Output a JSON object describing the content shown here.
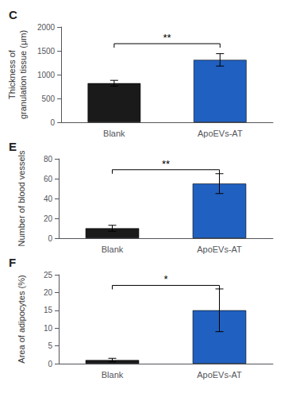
{
  "chart_data": [
    {
      "type": "bar",
      "title": "C",
      "ylabel": "Thickness of\ngranulation tissue (μm)",
      "categories": [
        "Blank",
        "ApoEVs-AT"
      ],
      "values": [
        820,
        1310
      ],
      "errors": [
        60,
        130
      ],
      "colors": [
        "#1a1a1a",
        "#2060c0"
      ],
      "ylim": [
        0,
        2000
      ],
      "yticks": [
        0,
        500,
        1000,
        1500,
        2000
      ],
      "grid": false,
      "annotations": [
        {
          "text": "**",
          "y": 1650
        }
      ]
    },
    {
      "type": "bar",
      "title": "E",
      "ylabel": "Number of blood vessels",
      "categories": [
        "Blank",
        "ApoEVs-AT"
      ],
      "values": [
        10,
        55
      ],
      "errors": [
        3,
        10
      ],
      "colors": [
        "#1a1a1a",
        "#2060c0"
      ],
      "ylim": [
        0,
        80
      ],
      "yticks": [
        0,
        20,
        40,
        60,
        80
      ],
      "grid": false,
      "annotations": [
        {
          "text": "**",
          "y": 69
        }
      ]
    },
    {
      "type": "bar",
      "title": "F",
      "ylabel": "Area of adipocytes (%)",
      "categories": [
        "Blank",
        "ApoEVs-AT"
      ],
      "values": [
        1,
        15
      ],
      "errors": [
        0.5,
        6
      ],
      "colors": [
        "#1a1a1a",
        "#2060c0"
      ],
      "ylim": [
        0,
        25
      ],
      "yticks": [
        0,
        5,
        10,
        15,
        20,
        25
      ],
      "grid": false,
      "annotations": [
        {
          "text": "*",
          "y": 22
        }
      ]
    }
  ]
}
